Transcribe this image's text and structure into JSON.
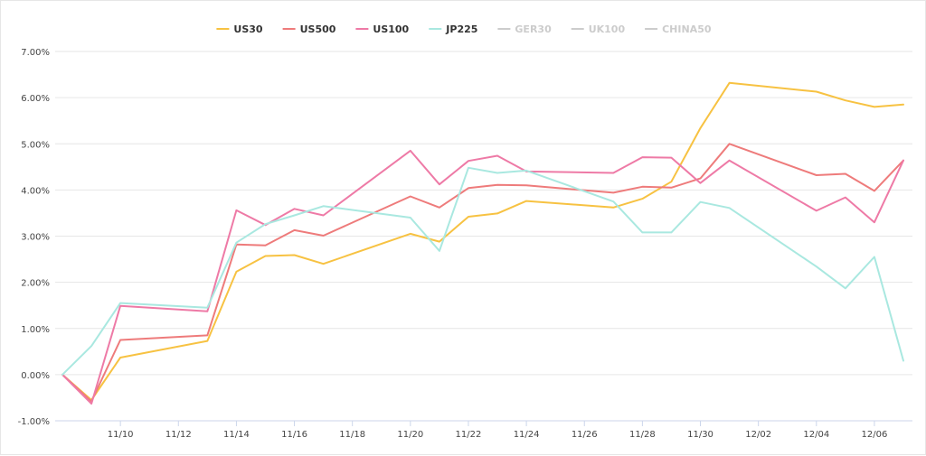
{
  "chart_data": {
    "type": "line",
    "title": "",
    "xlabel": "",
    "ylabel": "",
    "ylim": [
      -1,
      7
    ],
    "y_tick_values": [
      -1,
      0,
      1,
      2,
      3,
      4,
      5,
      6,
      7
    ],
    "y_tick_labels": [
      "-1.00%",
      "0.00%",
      "1.00%",
      "2.00%",
      "3.00%",
      "4.00%",
      "5.00%",
      "6.00%",
      "7.00%"
    ],
    "x_tick_labels": [
      "11/10",
      "11/12",
      "11/14",
      "11/16",
      "11/18",
      "11/20",
      "11/22",
      "11/24",
      "11/26",
      "11/28",
      "11/30",
      "12/02",
      "12/04",
      "12/06"
    ],
    "x_dates": [
      "11/08",
      "11/09",
      "11/10",
      "11/13",
      "11/14",
      "11/15",
      "11/16",
      "11/17",
      "11/20",
      "11/21",
      "11/22",
      "11/23",
      "11/24",
      "11/27",
      "11/28",
      "11/29",
      "11/30",
      "12/01",
      "12/04",
      "12/05",
      "12/06",
      "12/07"
    ],
    "grid": true,
    "legend_position": "top-center",
    "series": [
      {
        "name": "US30",
        "color": "#f7c242",
        "visible": true,
        "values": [
          0.0,
          -0.55,
          0.37,
          0.73,
          2.23,
          2.57,
          2.59,
          2.4,
          3.05,
          2.88,
          3.42,
          3.49,
          3.76,
          3.62,
          3.81,
          4.18,
          5.34,
          6.32,
          6.13,
          5.94,
          5.8,
          5.85
        ]
      },
      {
        "name": "US500",
        "color": "#ee7b7b",
        "visible": true,
        "values": [
          0.0,
          -0.58,
          0.75,
          0.85,
          2.82,
          2.8,
          3.13,
          3.01,
          3.86,
          3.62,
          4.04,
          4.11,
          4.1,
          3.94,
          4.07,
          4.05,
          4.25,
          5.0,
          4.32,
          4.35,
          3.98,
          4.64
        ]
      },
      {
        "name": "US100",
        "color": "#ee7aa6",
        "visible": true,
        "values": [
          0.0,
          -0.63,
          1.49,
          1.37,
          3.56,
          3.24,
          3.59,
          3.45,
          4.85,
          4.12,
          4.63,
          4.74,
          4.4,
          4.37,
          4.71,
          4.7,
          4.15,
          4.64,
          3.55,
          3.84,
          3.3,
          4.64
        ]
      },
      {
        "name": "JP225",
        "color": "#a9e8e0",
        "visible": true,
        "values": [
          0.0,
          0.62,
          1.55,
          1.45,
          2.86,
          3.26,
          3.45,
          3.65,
          3.4,
          2.68,
          4.48,
          4.37,
          4.42,
          3.75,
          3.08,
          3.08,
          3.74,
          3.61,
          2.34,
          1.87,
          2.55,
          0.3
        ]
      },
      {
        "name": "GER30",
        "color": "#cccccc",
        "visible": false,
        "values": []
      },
      {
        "name": "UK100",
        "color": "#cccccc",
        "visible": false,
        "values": []
      },
      {
        "name": "CHINA50",
        "color": "#cccccc",
        "visible": false,
        "values": []
      }
    ]
  }
}
